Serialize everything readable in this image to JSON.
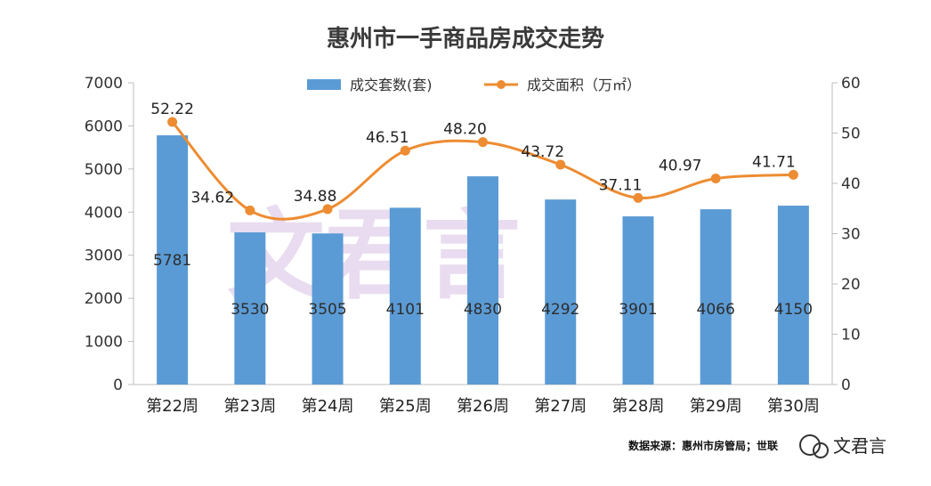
{
  "chart_data": {
    "type": "bar",
    "title": "惠州市一手商品房成交走势",
    "categories": [
      "第22周",
      "第23周",
      "第24周",
      "第25周",
      "第26周",
      "第27周",
      "第28周",
      "第29周",
      "第30周"
    ],
    "series": [
      {
        "name": "成交套数(套)",
        "type": "bar",
        "axis": "left",
        "values": [
          5781,
          3530,
          3505,
          4101,
          4830,
          4292,
          3901,
          4066,
          4150
        ],
        "color": "#5b9bd5"
      },
      {
        "name": "成交面积（万㎡）",
        "type": "line",
        "axis": "right",
        "values": [
          52.22,
          34.62,
          34.88,
          46.51,
          48.2,
          43.72,
          37.11,
          40.97,
          41.71
        ],
        "color": "#ed8c32",
        "labels": [
          "52.22",
          "34.62",
          "34.88",
          "46.51",
          "48.20",
          "43.72",
          "37.11",
          "40.97",
          "41.71"
        ]
      }
    ],
    "y_left": {
      "ylim": [
        0,
        7000
      ],
      "ticks": [
        "0",
        "1000",
        "2000",
        "3000",
        "4000",
        "5000",
        "6000",
        "7000"
      ]
    },
    "y_right": {
      "ylim": [
        0,
        60
      ],
      "ticks": [
        "0",
        "10",
        "20",
        "30",
        "40",
        "50",
        "60"
      ]
    },
    "legend": "top-center",
    "grid": false
  },
  "source_note": "数据来源：惠州市房管局；世联",
  "brand": "文君言",
  "watermark": "文君言"
}
